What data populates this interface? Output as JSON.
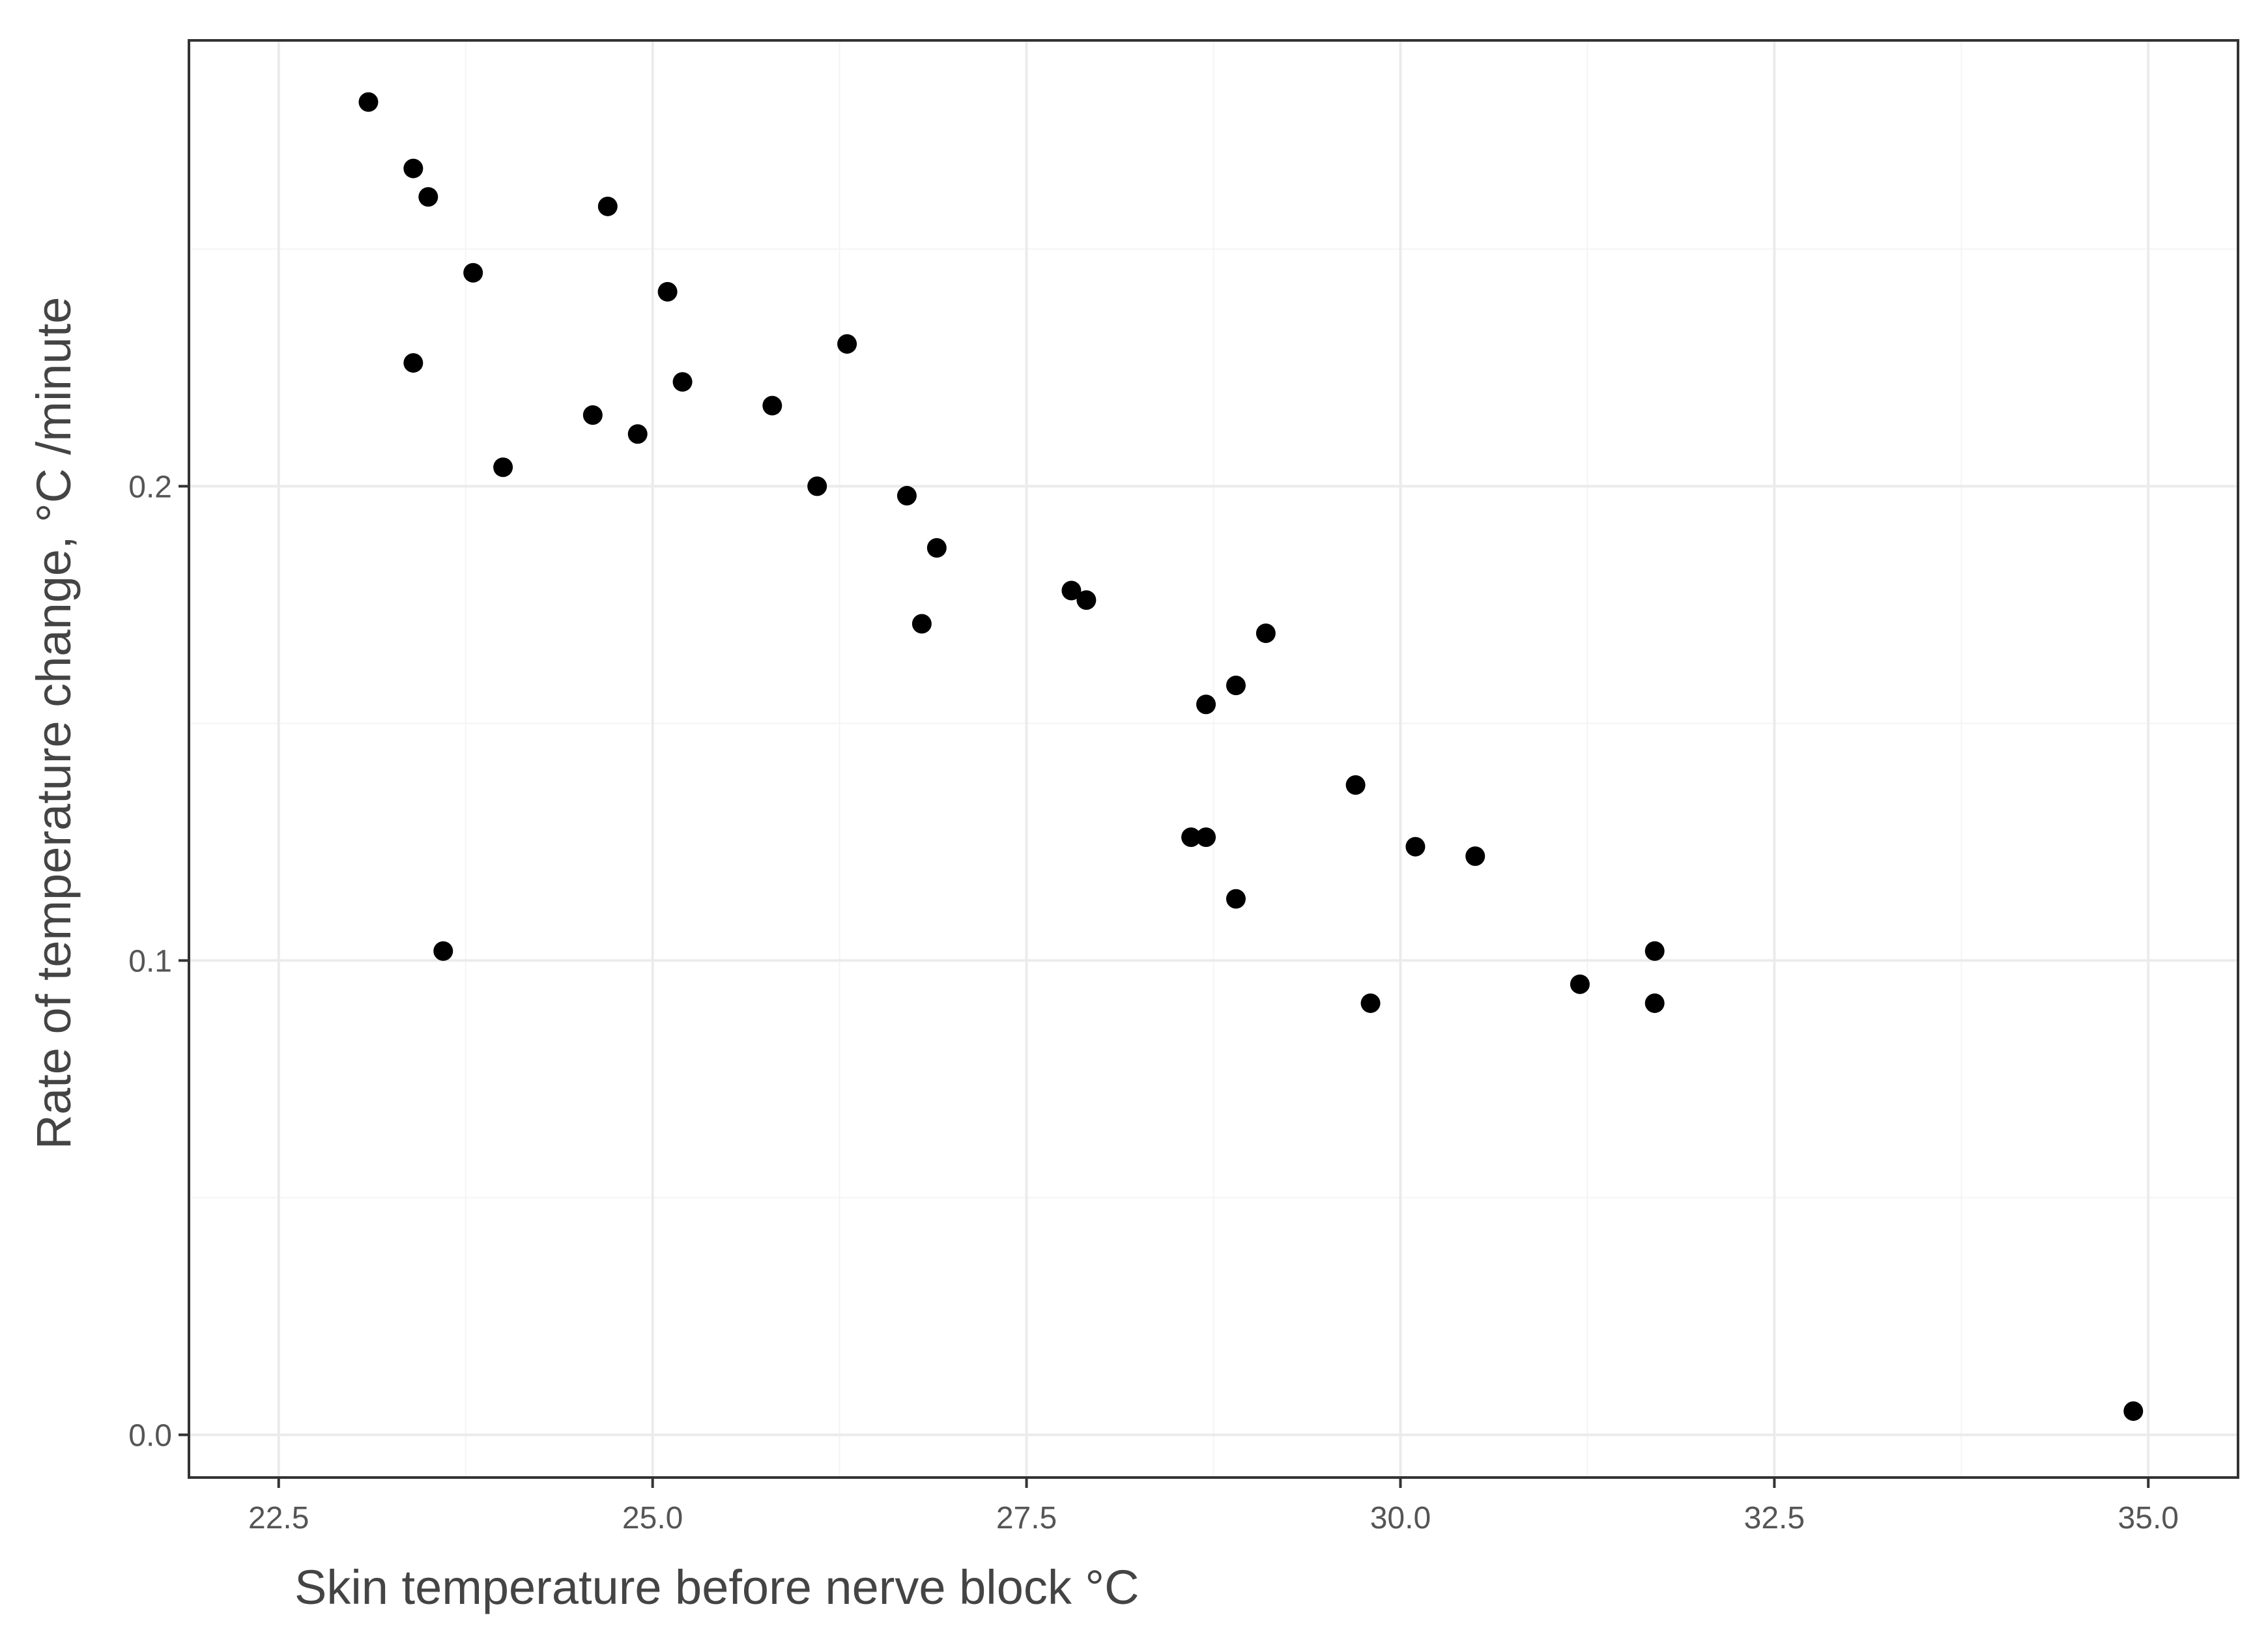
{
  "chart_data": {
    "type": "scatter",
    "title": "",
    "xlabel": "Skin temperature before nerve block °C",
    "ylabel": "Rate of temperature change, °C /minute",
    "xlim": [
      21.9,
      35.6
    ],
    "ylim": [
      -0.009,
      0.294
    ],
    "x_ticks": [
      {
        "value": 22.5,
        "label": "22.5"
      },
      {
        "value": 25.0,
        "label": "25.0"
      },
      {
        "value": 27.5,
        "label": "27.5"
      },
      {
        "value": 30.0,
        "label": "30.0"
      },
      {
        "value": 32.5,
        "label": "32.5"
      },
      {
        "value": 35.0,
        "label": "35.0"
      }
    ],
    "y_ticks": [
      {
        "value": 0.0,
        "label": "0.0"
      },
      {
        "value": 0.1,
        "label": "0.1"
      },
      {
        "value": 0.2,
        "label": "0.2"
      }
    ],
    "grid": true,
    "legend": "none",
    "point_color": "#000000",
    "points": [
      {
        "x": 23.1,
        "y": 0.281
      },
      {
        "x": 23.4,
        "y": 0.267
      },
      {
        "x": 23.5,
        "y": 0.261
      },
      {
        "x": 23.4,
        "y": 0.226
      },
      {
        "x": 23.6,
        "y": 0.102
      },
      {
        "x": 23.8,
        "y": 0.245
      },
      {
        "x": 24.0,
        "y": 0.204
      },
      {
        "x": 24.6,
        "y": 0.215
      },
      {
        "x": 24.7,
        "y": 0.259
      },
      {
        "x": 24.9,
        "y": 0.211
      },
      {
        "x": 25.1,
        "y": 0.241
      },
      {
        "x": 25.2,
        "y": 0.222
      },
      {
        "x": 25.8,
        "y": 0.217
      },
      {
        "x": 26.1,
        "y": 0.2
      },
      {
        "x": 26.3,
        "y": 0.23
      },
      {
        "x": 26.7,
        "y": 0.198
      },
      {
        "x": 26.8,
        "y": 0.171
      },
      {
        "x": 26.9,
        "y": 0.187
      },
      {
        "x": 27.8,
        "y": 0.178
      },
      {
        "x": 27.9,
        "y": 0.176
      },
      {
        "x": 28.6,
        "y": 0.126
      },
      {
        "x": 28.7,
        "y": 0.126
      },
      {
        "x": 28.7,
        "y": 0.154
      },
      {
        "x": 28.9,
        "y": 0.158
      },
      {
        "x": 28.9,
        "y": 0.113
      },
      {
        "x": 29.1,
        "y": 0.169
      },
      {
        "x": 29.7,
        "y": 0.137
      },
      {
        "x": 29.8,
        "y": 0.091
      },
      {
        "x": 30.1,
        "y": 0.124
      },
      {
        "x": 30.5,
        "y": 0.122
      },
      {
        "x": 31.2,
        "y": 0.095
      },
      {
        "x": 31.7,
        "y": 0.102
      },
      {
        "x": 31.7,
        "y": 0.091
      },
      {
        "x": 34.9,
        "y": 0.005
      }
    ]
  }
}
